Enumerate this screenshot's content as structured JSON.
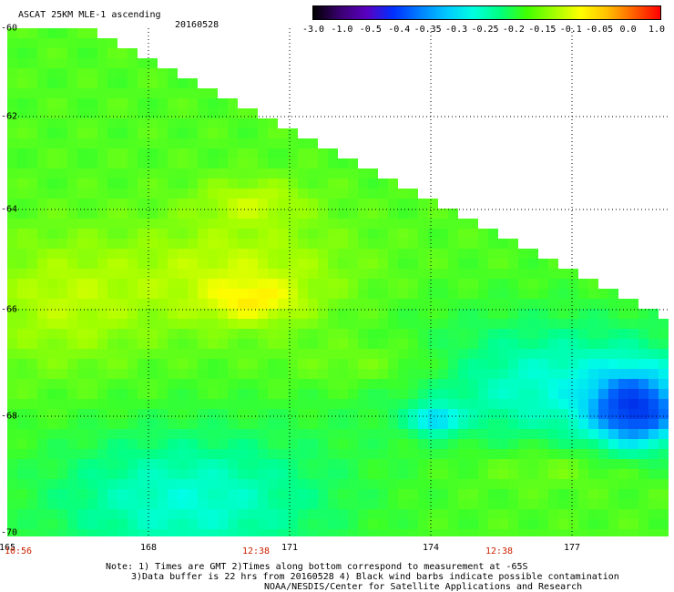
{
  "title": "ASCAT 25KM MLE-1 ascending",
  "date": "20160528",
  "colorbar": {
    "labels": [
      "-3.0",
      "-1.0",
      "-0.5",
      "-0.4",
      "-0.35",
      "-0.3",
      "-0.25",
      "-0.2",
      "-0.15",
      "-0.1",
      "-0.05",
      "0.0",
      "1.0"
    ],
    "colors": [
      "#000000",
      "#3a0070",
      "#5a00c0",
      "#0030ff",
      "#0080ff",
      "#00c8ff",
      "#00ffe0",
      "#00ff80",
      "#40ff00",
      "#a0ff00",
      "#ffff00",
      "#ffc000",
      "#ff6000",
      "#ff0000"
    ]
  },
  "map": {
    "lat_labels": [
      "-60",
      "-62",
      "-64",
      "-66",
      "-68",
      "-70"
    ],
    "lon_labels": [
      "165",
      "168",
      "171",
      "174",
      "177"
    ],
    "time_labels": [
      "10:56",
      "12:38",
      "12:38"
    ]
  },
  "notes": [
    "Note: 1) Times are GMT 2)Times along bottom correspond to measurement at -65S",
    "3)Data buffer is 22 hrs from 20160528 4) Black wind barbs indicate possible contamination",
    "NOAA/NESDIS/Center for Satellite Applications and Research"
  ]
}
